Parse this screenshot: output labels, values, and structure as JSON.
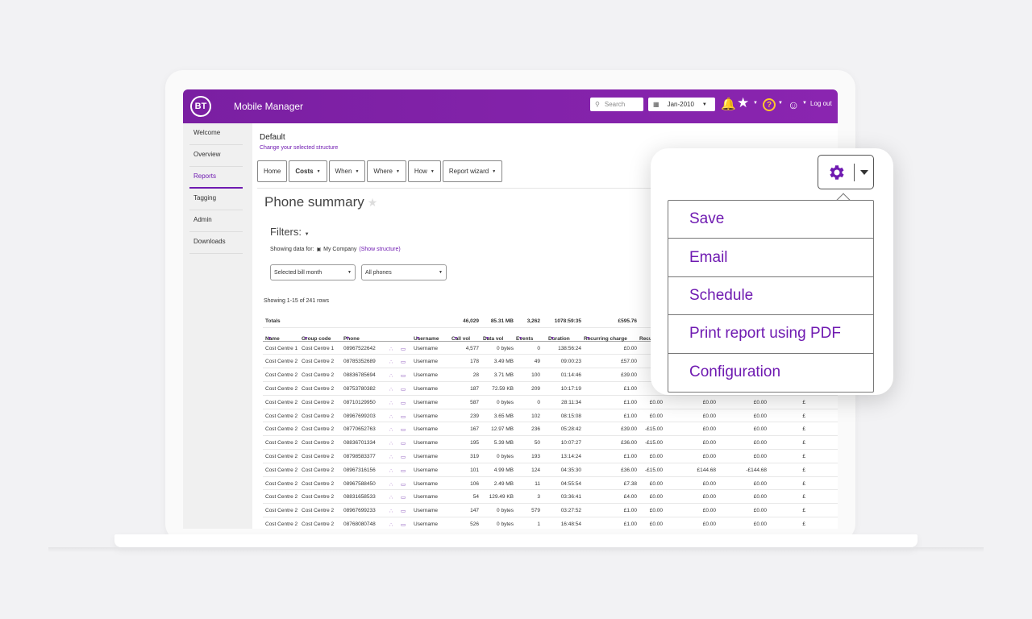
{
  "header": {
    "logo": "BT",
    "app_title": "Mobile Manager",
    "search_placeholder": "Search",
    "date": "Jan-2010",
    "help": "?",
    "logout": "Log out"
  },
  "sidebar": {
    "items": [
      {
        "label": "Welcome"
      },
      {
        "label": "Overview"
      },
      {
        "label": "Reports"
      },
      {
        "label": "Tagging"
      },
      {
        "label": "Admin"
      },
      {
        "label": "Downloads"
      }
    ],
    "active": "Reports"
  },
  "main": {
    "structure_title": "Default",
    "structure_link": "Change your selected structure",
    "tabs": [
      {
        "label": "Home"
      },
      {
        "label": "Costs"
      },
      {
        "label": "When"
      },
      {
        "label": "Where"
      },
      {
        "label": "How"
      },
      {
        "label": "Report wizard"
      }
    ],
    "page_title": "Phone summary",
    "filters_label": "Filters:",
    "showing_data_prefix": "Showing data for:",
    "company": "My Company",
    "show_structure": "(Show structure)",
    "bill_month_select": "Selected bill month",
    "phones_select": "All phones",
    "row_count": "Showing 1-15 of 241 rows"
  },
  "table": {
    "totals": {
      "label": "Totals",
      "call_vol": "46,029",
      "data_vol": "85.31 MB",
      "events": "3,262",
      "duration": "1078:59:35",
      "recurring": "£595.76"
    },
    "headers": [
      "Name",
      "Group code",
      "Phone",
      "Username",
      "Call vol",
      "Data vol",
      "Events",
      "Duration",
      "Recurring charge",
      "Recu"
    ],
    "rows": [
      {
        "name": "Cost Centre 1",
        "group": "Cost Centre 1",
        "phone": "08967522642",
        "user": "Username",
        "call_vol": "4,577",
        "data_vol": "0 bytes",
        "events": "0",
        "duration": "138:56:24",
        "recurring": "£0.00",
        "c1": "",
        "c2": "",
        "c3": "",
        "c4": "",
        "c5": ""
      },
      {
        "name": "Cost Centre 2",
        "group": "Cost Centre 2",
        "phone": "08785352689",
        "user": "Username",
        "call_vol": "178",
        "data_vol": "3.49 MB",
        "events": "49",
        "duration": "09:00:23",
        "recurring": "£57.00",
        "c1": "",
        "c2": "",
        "c3": "",
        "c4": "",
        "c5": ""
      },
      {
        "name": "Cost Centre 2",
        "group": "Cost Centre 2",
        "phone": "08836785694",
        "user": "Username",
        "call_vol": "28",
        "data_vol": "3.71 MB",
        "events": "100",
        "duration": "01:14:46",
        "recurring": "£39.00",
        "c1": "",
        "c2": "",
        "c3": "",
        "c4": "",
        "c5": ""
      },
      {
        "name": "Cost Centre 2",
        "group": "Cost Centre 2",
        "phone": "08753780382",
        "user": "Username",
        "call_vol": "187",
        "data_vol": "72.59 KB",
        "events": "209",
        "duration": "10:17:19",
        "recurring": "£1.00",
        "c1": "",
        "c2": "",
        "c3": "",
        "c4": "",
        "c5": ""
      },
      {
        "name": "Cost Centre 2",
        "group": "Cost Centre 2",
        "phone": "08710129950",
        "user": "Username",
        "call_vol": "587",
        "data_vol": "0 bytes",
        "events": "0",
        "duration": "28:11:34",
        "recurring": "£1.00",
        "c1": "£0.00",
        "c2": "£0.00",
        "c3": "£0.00",
        "c4": "£",
        "c5": ""
      },
      {
        "name": "Cost Centre 2",
        "group": "Cost Centre 2",
        "phone": "08967699203",
        "user": "Username",
        "call_vol": "239",
        "data_vol": "3.65 MB",
        "events": "102",
        "duration": "08:15:08",
        "recurring": "£1.00",
        "c1": "£0.00",
        "c2": "£0.00",
        "c3": "£0.00",
        "c4": "£",
        "c5": ""
      },
      {
        "name": "Cost Centre 2",
        "group": "Cost Centre 2",
        "phone": "08770652763",
        "user": "Username",
        "call_vol": "167",
        "data_vol": "12.97 MB",
        "events": "236",
        "duration": "05:28:42",
        "recurring": "£39.00",
        "c1": "-£15.00",
        "c2": "£0.00",
        "c3": "£0.00",
        "c4": "£",
        "c5": ""
      },
      {
        "name": "Cost Centre 2",
        "group": "Cost Centre 2",
        "phone": "08836701334",
        "user": "Username",
        "call_vol": "195",
        "data_vol": "5.39 MB",
        "events": "50",
        "duration": "10:07:27",
        "recurring": "£36.00",
        "c1": "-£15.00",
        "c2": "£0.00",
        "c3": "£0.00",
        "c4": "£",
        "c5": ""
      },
      {
        "name": "Cost Centre 2",
        "group": "Cost Centre 2",
        "phone": "08798583377",
        "user": "Username",
        "call_vol": "319",
        "data_vol": "0 bytes",
        "events": "193",
        "duration": "13:14:24",
        "recurring": "£1.00",
        "c1": "£0.00",
        "c2": "£0.00",
        "c3": "£0.00",
        "c4": "£",
        "c5": ""
      },
      {
        "name": "Cost Centre 2",
        "group": "Cost Centre 2",
        "phone": "08967316156",
        "user": "Username",
        "call_vol": "101",
        "data_vol": "4.99 MB",
        "events": "124",
        "duration": "04:35:30",
        "recurring": "£36.00",
        "c1": "-£15.00",
        "c2": "£144.68",
        "c3": "-£144.68",
        "c4": "£",
        "c5": ""
      },
      {
        "name": "Cost Centre 2",
        "group": "Cost Centre 2",
        "phone": "08967588450",
        "user": "Username",
        "call_vol": "106",
        "data_vol": "2.49 MB",
        "events": "11",
        "duration": "04:55:54",
        "recurring": "£7.38",
        "c1": "£0.00",
        "c2": "£0.00",
        "c3": "£0.00",
        "c4": "£",
        "c5": ""
      },
      {
        "name": "Cost Centre 2",
        "group": "Cost Centre 2",
        "phone": "08831658533",
        "user": "Username",
        "call_vol": "54",
        "data_vol": "129.49 KB",
        "events": "3",
        "duration": "03:36:41",
        "recurring": "£4.00",
        "c1": "£0.00",
        "c2": "£0.00",
        "c3": "£0.00",
        "c4": "£",
        "c5": ""
      },
      {
        "name": "Cost Centre 2",
        "group": "Cost Centre 2",
        "phone": "08967699233",
        "user": "Username",
        "call_vol": "147",
        "data_vol": "0 bytes",
        "events": "579",
        "duration": "03:27:52",
        "recurring": "£1.00",
        "c1": "£0.00",
        "c2": "£0.00",
        "c3": "£0.00",
        "c4": "£",
        "c5": ""
      },
      {
        "name": "Cost Centre 2",
        "group": "Cost Centre 2",
        "phone": "08768080748",
        "user": "Username",
        "call_vol": "526",
        "data_vol": "0 bytes",
        "events": "1",
        "duration": "16:48:54",
        "recurring": "£1.00",
        "c1": "£0.00",
        "c2": "£0.00",
        "c3": "£0.00",
        "c4": "£",
        "c5": ""
      }
    ]
  },
  "popup_menu": {
    "items": [
      {
        "label": "Save"
      },
      {
        "label": "Email"
      },
      {
        "label": "Schedule"
      },
      {
        "label": "Print report using PDF"
      },
      {
        "label": "Configuration"
      }
    ]
  },
  "colors": {
    "brand": "#7b1fa2",
    "link": "#6f1ab1",
    "accent_yellow": "#ffc72c"
  },
  "icons": [
    "search-icon",
    "calendar-icon",
    "bell-icon",
    "star-icon",
    "help-icon",
    "user-icon",
    "chart-icon",
    "folder-icon",
    "gear-icon",
    "chevron-down-icon"
  ]
}
